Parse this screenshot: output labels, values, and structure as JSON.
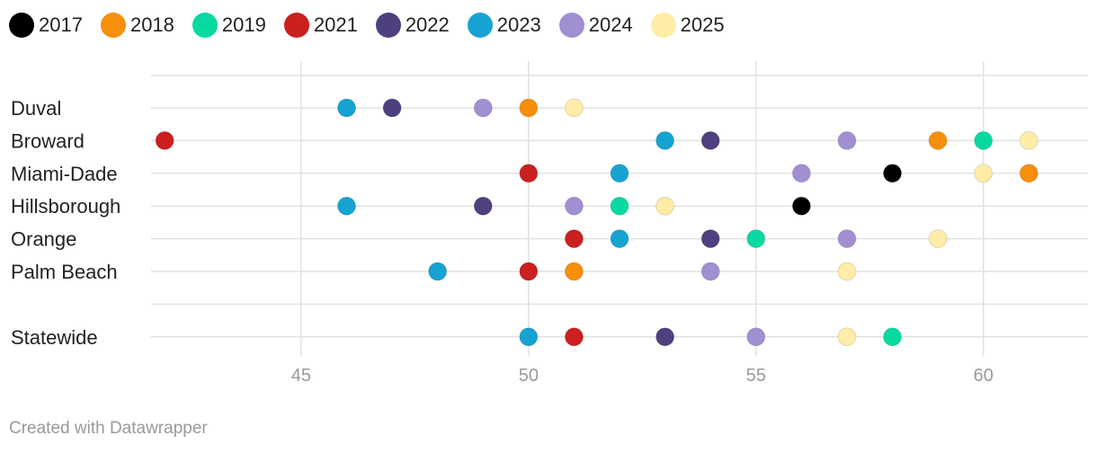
{
  "chart_data": {
    "type": "scatter",
    "categories": [
      "Duval",
      "Broward",
      "Miami-Dade",
      "Hillsborough",
      "Orange",
      "Palm Beach",
      "",
      "Statewide"
    ],
    "xlim": [
      41.7,
      62.3
    ],
    "xticks": [
      45,
      50,
      55,
      60
    ],
    "tick_labels": [
      "45",
      "50",
      "55",
      "60"
    ],
    "grid": true,
    "legend_placement": "top-left",
    "series": [
      {
        "name": "2017",
        "color": "#000000",
        "values": [
          null,
          null,
          58,
          56,
          null,
          null,
          null,
          null
        ]
      },
      {
        "name": "2018",
        "color": "#f78e0c",
        "values": [
          50,
          59,
          61,
          null,
          null,
          51,
          null,
          null
        ]
      },
      {
        "name": "2019",
        "color": "#08d9a1",
        "values": [
          null,
          60,
          null,
          52,
          55,
          null,
          null,
          58
        ]
      },
      {
        "name": "2021",
        "color": "#cc1f1f",
        "values": [
          null,
          42,
          50,
          null,
          51,
          50,
          null,
          51
        ]
      },
      {
        "name": "2022",
        "color": "#4e3f7f",
        "values": [
          47,
          54,
          null,
          49,
          54,
          null,
          null,
          53
        ]
      },
      {
        "name": "2023",
        "color": "#17a3d1",
        "values": [
          46,
          53,
          52,
          46,
          52,
          48,
          null,
          50
        ]
      },
      {
        "name": "2024",
        "color": "#a08fd1",
        "values": [
          49,
          57,
          56,
          51,
          57,
          54,
          null,
          55
        ]
      },
      {
        "name": "2025",
        "color": "#ffeca6",
        "values": [
          51,
          61,
          60,
          53,
          59,
          57,
          null,
          57
        ]
      }
    ]
  },
  "credit": "Created with Datawrapper"
}
